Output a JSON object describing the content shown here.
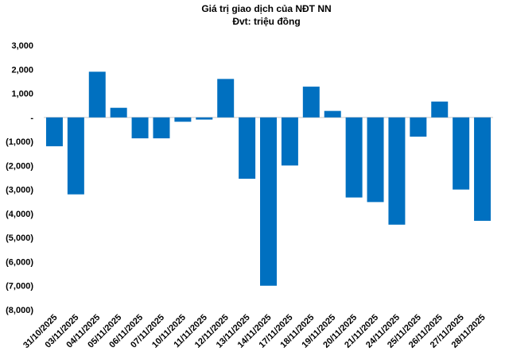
{
  "chart_data": {
    "type": "bar",
    "title": "Giá trị giao dịch của NĐT NN",
    "subtitle": "Đvt: triệu đồng",
    "xlabel": "",
    "ylabel": "",
    "ylim": [
      -8000,
      3000
    ],
    "grid": false,
    "bar_color": "#0070C0",
    "y_ticks": [
      3000,
      2000,
      1000,
      0,
      -1000,
      -2000,
      -3000,
      -4000,
      -5000,
      -6000,
      -7000,
      -8000
    ],
    "y_tick_labels": [
      "3,000",
      "2,000",
      "1,000",
      "-",
      "(1,000)",
      "(2,000)",
      "(3,000)",
      "(4,000)",
      "(5,000)",
      "(6,000)",
      "(7,000)",
      "(8,000)"
    ],
    "categories": [
      "31/10/2025",
      "03/11/2025",
      "04/11/2025",
      "05/11/2025",
      "06/11/2025",
      "07/11/2025",
      "10/11/2025",
      "11/11/2025",
      "12/11/2025",
      "13/11/2025",
      "14/11/2025",
      "17/11/2025",
      "18/11/2025",
      "19/11/2025",
      "20/11/2025",
      "21/11/2025",
      "24/11/2025",
      "25/11/2025",
      "26/11/2025",
      "27/11/2025",
      "28/11/2025"
    ],
    "values": [
      -1200,
      -3200,
      1900,
      400,
      -870,
      -870,
      -180,
      -90,
      1600,
      -2550,
      -7000,
      -2000,
      1280,
      270,
      -3330,
      -3520,
      -4460,
      -800,
      660,
      -3000,
      -4300
    ]
  }
}
